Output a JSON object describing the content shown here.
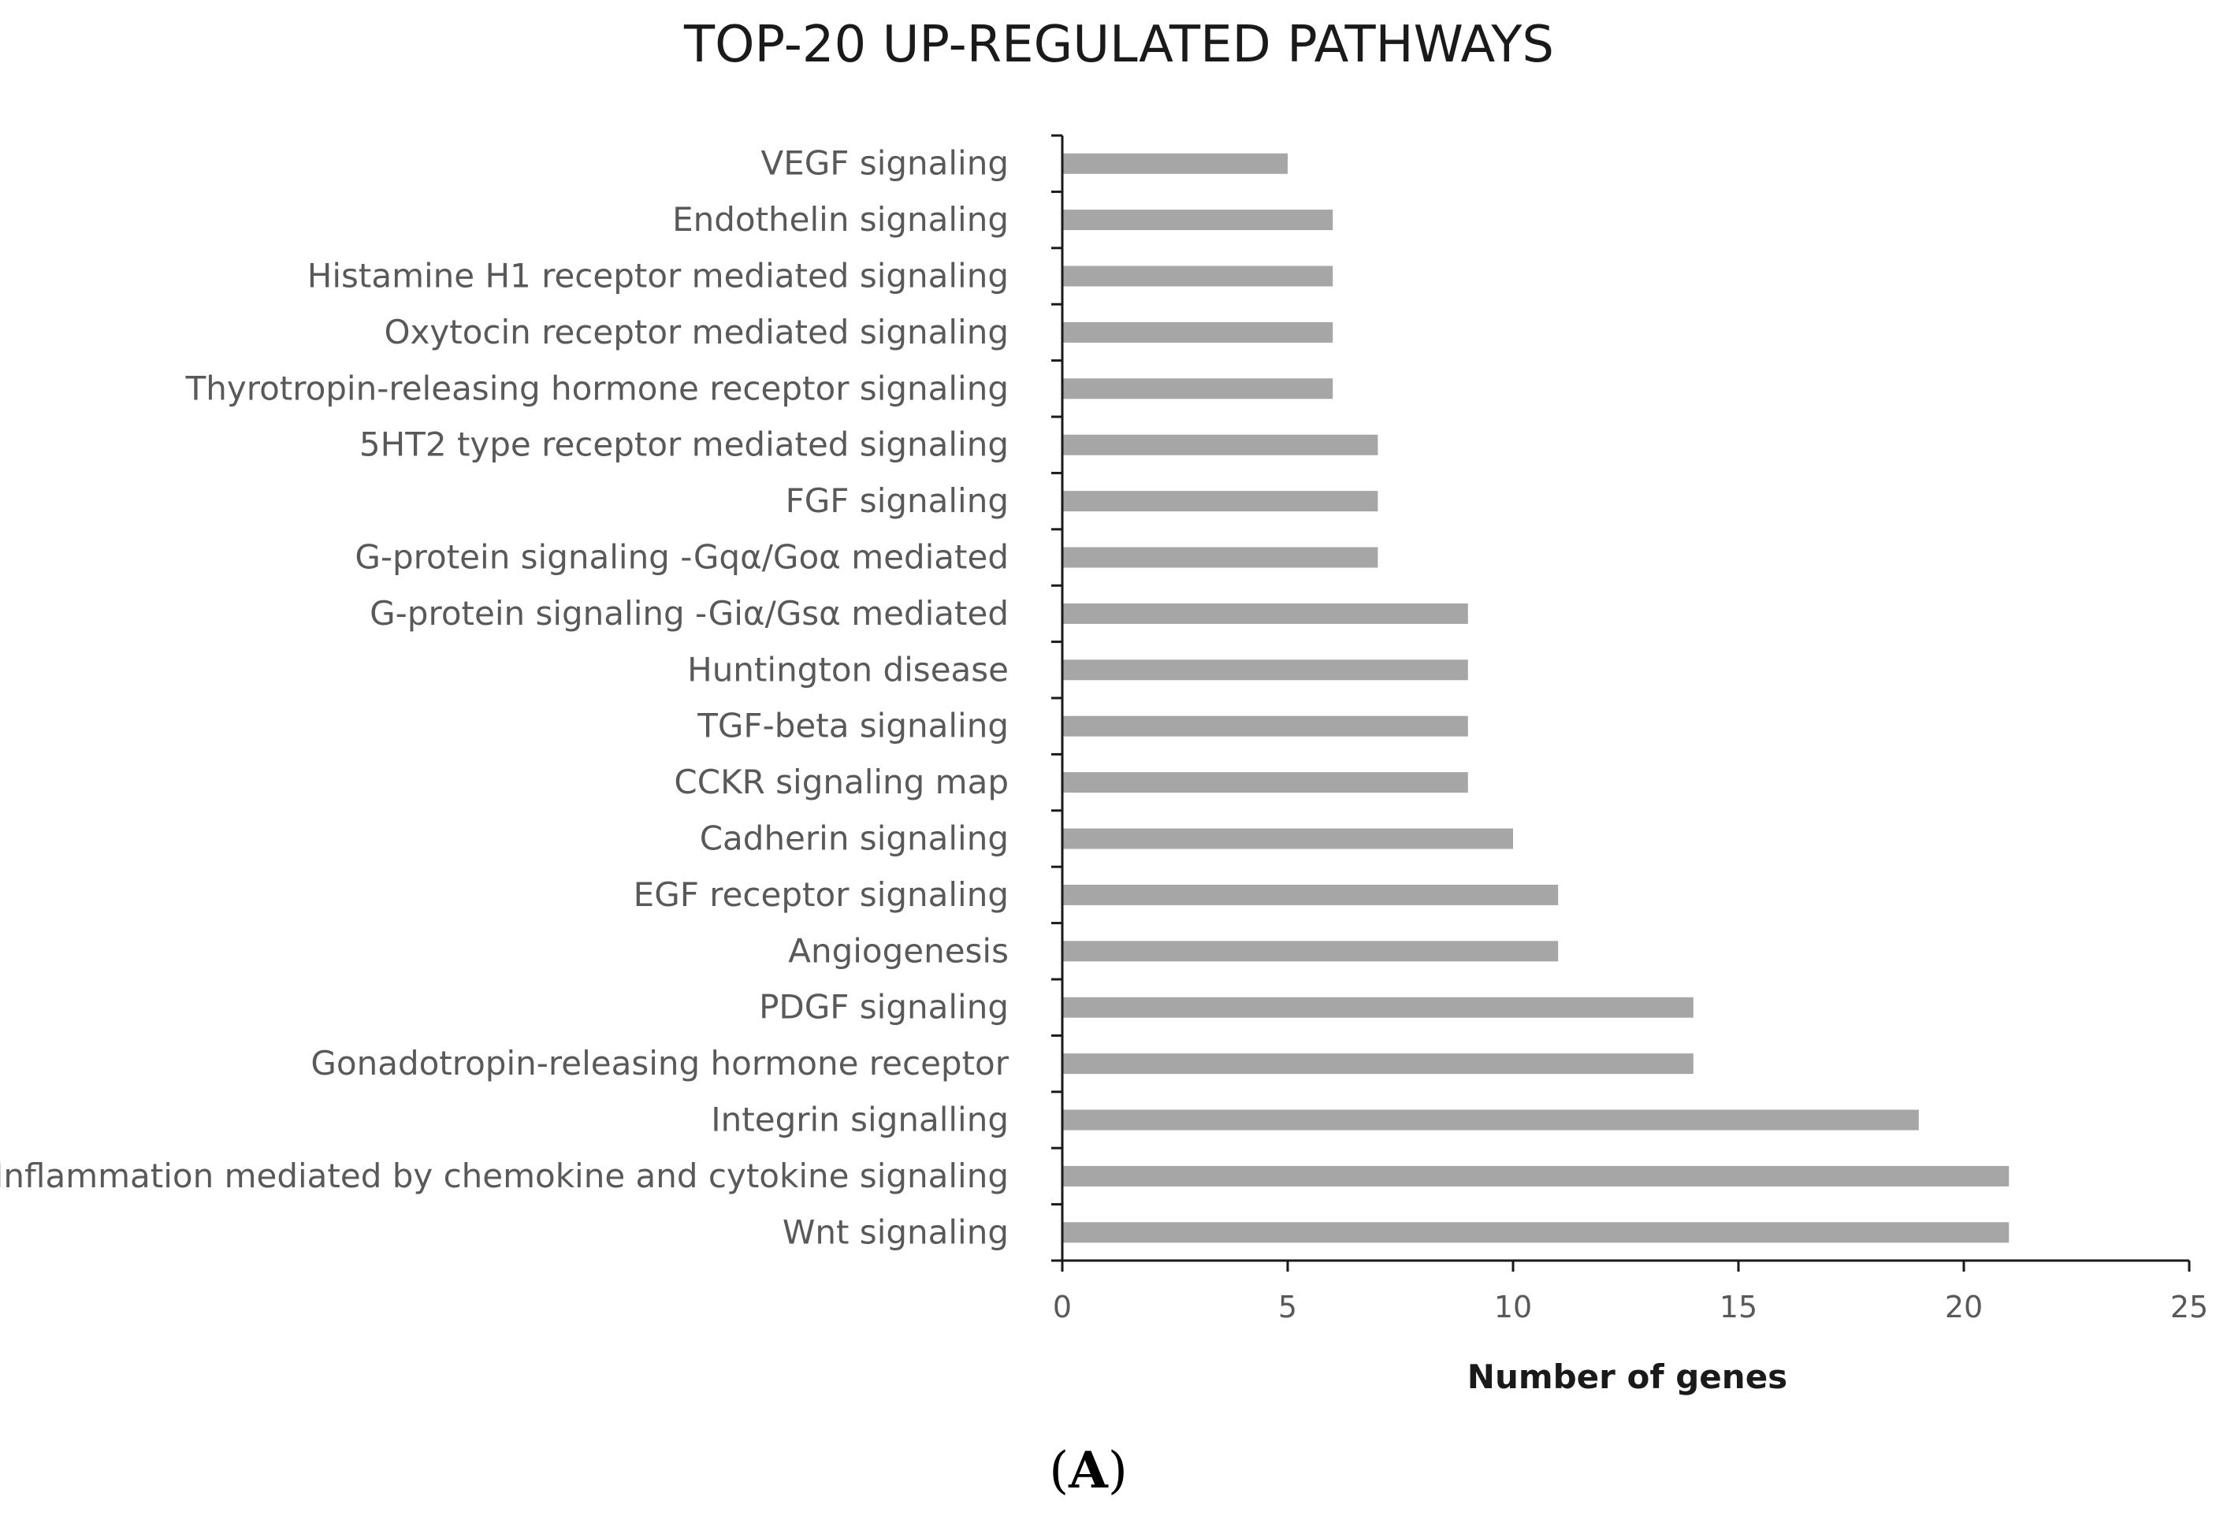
{
  "chart_data": {
    "type": "bar",
    "orientation": "horizontal",
    "title": "TOP-20 UP-REGULATED PATHWAYS",
    "xlabel": "Number of genes",
    "ylabel": "",
    "xlim": [
      0,
      25
    ],
    "xticks": [
      "0",
      "5",
      "10",
      "15",
      "20",
      "25"
    ],
    "grid": false,
    "bar_color": "#a6a6a6",
    "categories": [
      "VEGF signaling",
      "Endothelin signaling",
      "Histamine H1 receptor mediated signaling",
      "Oxytocin receptor mediated signaling",
      "Thyrotropin-releasing hormone receptor signaling",
      "5HT2 type receptor mediated signaling",
      "FGF signaling",
      "G-protein signaling -Gqα/Goα mediated",
      "G-protein signaling -Giα/Gsα mediated",
      "Huntington disease",
      "TGF-beta signaling",
      "CCKR signaling map",
      "Cadherin signaling",
      "EGF receptor signaling",
      "Angiogenesis",
      "PDGF signaling",
      "Gonadotropin-releasing hormone receptor",
      "Integrin signalling",
      "Inflammation mediated by chemokine and cytokine signaling",
      "Wnt signaling"
    ],
    "values": [
      5,
      6,
      6,
      6,
      6,
      7,
      7,
      7,
      9,
      9,
      9,
      9,
      10,
      11,
      11,
      14,
      14,
      19,
      21,
      21
    ]
  },
  "panel_label": {
    "open": "(",
    "letter": "A",
    "close": ")"
  }
}
